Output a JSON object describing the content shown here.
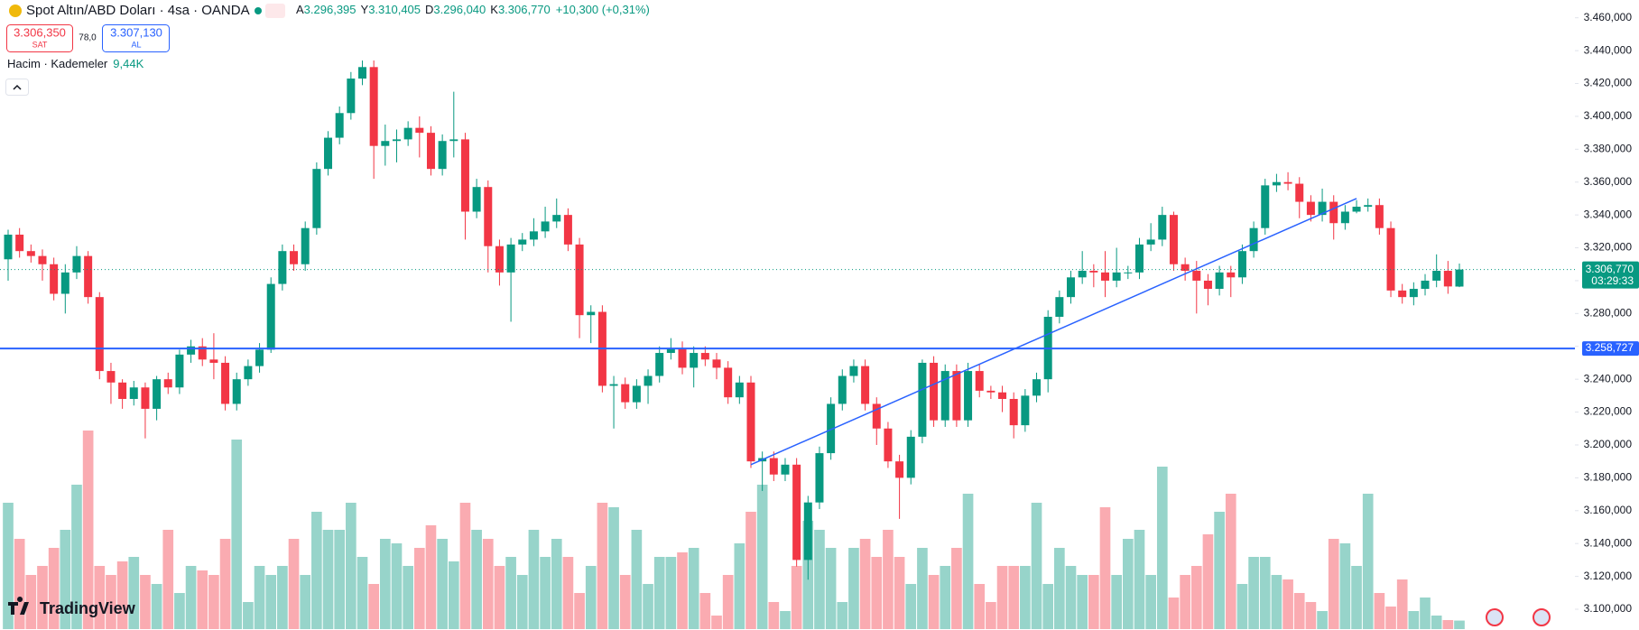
{
  "header": {
    "symbol": "Spot Altın/ABD Doları · 4sa · OANDA",
    "ohlc": [
      {
        "label": "A",
        "value": "3.296,395"
      },
      {
        "label": "Y",
        "value": "3.310,405"
      },
      {
        "label": "D",
        "value": "3.296,040"
      },
      {
        "label": "K",
        "value": "3.306,770"
      }
    ],
    "change": "+10,300 (+0,31%)",
    "sell": {
      "price": "3.306,350",
      "label": "SAT"
    },
    "spread": "78,0",
    "buy": {
      "price": "3.307,130",
      "label": "AL"
    },
    "volume_indicator": "Hacim · Kademeler",
    "volume_value": "9,44K",
    "logo": "TradingView"
  },
  "chart_data": {
    "type": "candlestick",
    "up_color": "#089981",
    "down_color": "#f23645",
    "ylim": [
      3100,
      3460
    ],
    "yticks": [
      {
        "value": 3100,
        "label": "3.100,000"
      },
      {
        "value": 3120,
        "label": "3.120,000"
      },
      {
        "value": 3140,
        "label": "3.140,000"
      },
      {
        "value": 3160,
        "label": "3.160,000"
      },
      {
        "value": 3180,
        "label": "3.180,000"
      },
      {
        "value": 3200,
        "label": "3.200,000"
      },
      {
        "value": 3220,
        "label": "3.220,000"
      },
      {
        "value": 3240,
        "label": "3.240,000"
      },
      {
        "value": 3260,
        "label": "3.260,000"
      },
      {
        "value": 3280,
        "label": "3.280,000"
      },
      {
        "value": 3300,
        "label": "3.300,000"
      },
      {
        "value": 3320,
        "label": "3.320,000"
      },
      {
        "value": 3340,
        "label": "3.340,000"
      },
      {
        "value": 3360,
        "label": "3.360,000"
      },
      {
        "value": 3380,
        "label": "3.380,000"
      },
      {
        "value": 3400,
        "label": "3.400,000"
      },
      {
        "value": 3420,
        "label": "3.420,000"
      },
      {
        "value": 3440,
        "label": "3.440,000"
      },
      {
        "value": 3460,
        "label": "3.460,000"
      }
    ],
    "open": [
      3313,
      3328,
      3318,
      3315,
      3310,
      3292,
      3305,
      3315,
      3290,
      3245,
      3238,
      3228,
      3235,
      3222,
      3240,
      3235,
      3255,
      3260,
      3252,
      3250,
      3225,
      3240,
      3248,
      3258,
      3298,
      3318,
      3310,
      3332,
      3368,
      3387,
      3402,
      3423,
      3430,
      3382,
      3385,
      3386,
      3393,
      3390,
      3368,
      3385,
      3386,
      3342,
      3357,
      3321,
      3305,
      3322,
      3325,
      3330,
      3336,
      3340,
      3322,
      3279,
      3281,
      3236,
      3237,
      3226,
      3236,
      3242,
      3256,
      3259,
      3247,
      3256,
      3252,
      3247,
      3229,
      3238,
      3190,
      3192,
      3182,
      3188,
      3130,
      3165,
      3195,
      3225,
      3242,
      3248,
      3225,
      3210,
      3190,
      3180,
      3205,
      3250,
      3215,
      3245,
      3215,
      3245,
      3233,
      3232,
      3228,
      3212,
      3230,
      3240,
      3278,
      3290,
      3302,
      3306,
      3305,
      3300,
      3305,
      3305,
      3322,
      3325,
      3340,
      3310,
      3306,
      3300,
      3295,
      3305,
      3302,
      3318,
      3332,
      3358,
      3360,
      3359,
      3348,
      3340,
      3348,
      3335,
      3342,
      3345,
      3346,
      3332,
      3294,
      3290,
      3295,
      3300,
      3306,
      3296.395
    ],
    "high": [
      3331,
      3332,
      3322,
      3319,
      3314,
      3310,
      3321,
      3318,
      3293,
      3250,
      3240,
      3239,
      3238,
      3242,
      3244,
      3258,
      3264,
      3265,
      3268,
      3254,
      3244,
      3252,
      3262,
      3302,
      3322,
      3322,
      3336,
      3372,
      3391,
      3406,
      3427,
      3434,
      3434,
      3395,
      3392,
      3397,
      3400,
      3394,
      3389,
      3415,
      3390,
      3362,
      3361,
      3325,
      3326,
      3329,
      3338,
      3345,
      3350,
      3344,
      3326,
      3285,
      3285,
      3242,
      3241,
      3240,
      3246,
      3260,
      3265,
      3263,
      3260,
      3260,
      3256,
      3251,
      3242,
      3242,
      3196,
      3196,
      3192,
      3192,
      3169,
      3199,
      3229,
      3246,
      3252,
      3252,
      3229,
      3214,
      3194,
      3209,
      3252,
      3254,
      3249,
      3249,
      3250,
      3249,
      3236,
      3236,
      3232,
      3234,
      3244,
      3282,
      3294,
      3306,
      3318,
      3310,
      3318,
      3320,
      3309,
      3326,
      3335,
      3345,
      3342,
      3314,
      3312,
      3304,
      3309,
      3309,
      3322,
      3336,
      3362,
      3365,
      3366,
      3363,
      3352,
      3356,
      3352,
      3346,
      3349,
      3350,
      3350,
      3336,
      3298,
      3299,
      3304,
      3316,
      3312,
      3310.405
    ],
    "low": [
      3300,
      3314,
      3311,
      3300,
      3288,
      3280,
      3301,
      3286,
      3240,
      3225,
      3222,
      3224,
      3204,
      3215,
      3231,
      3231,
      3250,
      3248,
      3240,
      3221,
      3221,
      3236,
      3244,
      3256,
      3294,
      3306,
      3306,
      3328,
      3364,
      3383,
      3398,
      3419,
      3362,
      3370,
      3372,
      3382,
      3375,
      3364,
      3364,
      3375,
      3325,
      3338,
      3305,
      3297,
      3275,
      3318,
      3321,
      3326,
      3332,
      3318,
      3265,
      3262,
      3232,
      3210,
      3222,
      3222,
      3225,
      3238,
      3252,
      3243,
      3235,
      3248,
      3240,
      3225,
      3225,
      3186,
      3172,
      3178,
      3178,
      3126,
      3118,
      3161,
      3191,
      3221,
      3238,
      3221,
      3200,
      3186,
      3155,
      3176,
      3201,
      3211,
      3211,
      3211,
      3211,
      3229,
      3228,
      3220,
      3204,
      3208,
      3226,
      3232,
      3274,
      3286,
      3298,
      3296,
      3290,
      3296,
      3301,
      3301,
      3318,
      3321,
      3306,
      3300,
      3280,
      3285,
      3291,
      3290,
      3298,
      3314,
      3328,
      3354,
      3355,
      3338,
      3336,
      3336,
      3325,
      3331,
      3341,
      3342,
      3328,
      3290,
      3286,
      3285,
      3291,
      3296,
      3292,
      3296.04
    ],
    "close": [
      3328,
      3318,
      3315,
      3310,
      3292,
      3305,
      3315,
      3290,
      3245,
      3238,
      3228,
      3235,
      3222,
      3240,
      3235,
      3255,
      3260,
      3252,
      3250,
      3225,
      3240,
      3248,
      3258,
      3298,
      3318,
      3310,
      3332,
      3368,
      3387,
      3402,
      3423,
      3430,
      3382,
      3385,
      3386,
      3393,
      3390,
      3368,
      3385,
      3386,
      3342,
      3357,
      3321,
      3305,
      3322,
      3325,
      3330,
      3336,
      3340,
      3322,
      3279,
      3281,
      3236,
      3237,
      3226,
      3236,
      3242,
      3256,
      3259,
      3247,
      3256,
      3252,
      3247,
      3229,
      3238,
      3190,
      3192,
      3182,
      3188,
      3130,
      3165,
      3195,
      3225,
      3242,
      3248,
      3225,
      3210,
      3190,
      3180,
      3205,
      3250,
      3215,
      3245,
      3215,
      3245,
      3233,
      3232,
      3228,
      3212,
      3230,
      3240,
      3278,
      3290,
      3302,
      3306,
      3305,
      3300,
      3305,
      3305,
      3322,
      3325,
      3340,
      3310,
      3306,
      3300,
      3295,
      3305,
      3302,
      3318,
      3332,
      3358,
      3360,
      3359,
      3348,
      3340,
      3348,
      3335,
      3342,
      3345,
      3346,
      3332,
      3294,
      3290,
      3295,
      3300,
      3306,
      3296.47,
      3306.77
    ],
    "volume": [
      140,
      100,
      60,
      70,
      90,
      110,
      160,
      220,
      70,
      60,
      75,
      80,
      60,
      50,
      110,
      40,
      70,
      65,
      60,
      100,
      210,
      30,
      70,
      60,
      70,
      100,
      60,
      130,
      110,
      110,
      140,
      80,
      50,
      100,
      95,
      70,
      90,
      115,
      100,
      75,
      140,
      110,
      100,
      70,
      80,
      60,
      110,
      80,
      100,
      80,
      40,
      70,
      140,
      135,
      60,
      110,
      50,
      80,
      80,
      85,
      90,
      40,
      15,
      60,
      95,
      130,
      160,
      30,
      20,
      70,
      120,
      110,
      90,
      30,
      90,
      100,
      80,
      110,
      80,
      50,
      90,
      60,
      70,
      90,
      150,
      50,
      30,
      70,
      70,
      70,
      140,
      50,
      90,
      70,
      60,
      60,
      135,
      60,
      100,
      110,
      60,
      180,
      35,
      60,
      70,
      105,
      130,
      150,
      50,
      80,
      80,
      60,
      55,
      40,
      30,
      20,
      100,
      95,
      70,
      150,
      40,
      25,
      55,
      20,
      35,
      15,
      10,
      9.44
    ],
    "last_price": {
      "value": 3306.77,
      "label": "3.306,770"
    },
    "countdown": "03:29:33",
    "horizontal_line": {
      "value": 3258.727,
      "label": "3.258,727",
      "color": "#2962ff"
    },
    "trend_line": {
      "start_index": 65,
      "start_price": 3188,
      "end_index": 118,
      "end_price": 3350,
      "color": "#2962ff"
    }
  }
}
